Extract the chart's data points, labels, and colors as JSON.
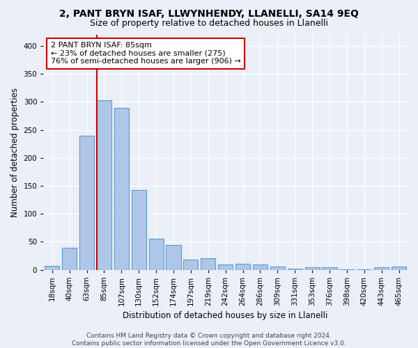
{
  "title1": "2, PANT BRYN ISAF, LLWYNHENDY, LLANELLI, SA14 9EQ",
  "title2": "Size of property relative to detached houses in Llanelli",
  "xlabel": "Distribution of detached houses by size in Llanelli",
  "ylabel": "Number of detached properties",
  "categories": [
    "18sqm",
    "40sqm",
    "63sqm",
    "85sqm",
    "107sqm",
    "130sqm",
    "152sqm",
    "174sqm",
    "197sqm",
    "219sqm",
    "242sqm",
    "264sqm",
    "286sqm",
    "309sqm",
    "331sqm",
    "353sqm",
    "376sqm",
    "398sqm",
    "420sqm",
    "443sqm",
    "465sqm"
  ],
  "values": [
    7,
    39,
    240,
    303,
    289,
    142,
    55,
    44,
    18,
    20,
    9,
    11,
    9,
    5,
    2,
    4,
    4,
    1,
    1,
    4,
    5
  ],
  "bar_color": "#aec6e8",
  "bar_edge_color": "#5b9bd5",
  "bar_edge_width": 0.8,
  "vline_index": 3,
  "vline_color": "#cc0000",
  "annotation_text": "2 PANT BRYN ISAF: 85sqm\n← 23% of detached houses are smaller (275)\n76% of semi-detached houses are larger (906) →",
  "annotation_box_color": "white",
  "annotation_box_edge_color": "#cc0000",
  "ylim": [
    0,
    420
  ],
  "yticks": [
    0,
    50,
    100,
    150,
    200,
    250,
    300,
    350,
    400
  ],
  "bg_color": "#eaeff8",
  "plot_bg_color": "#eaeff8",
  "footer": "Contains HM Land Registry data © Crown copyright and database right 2024.\nContains public sector information licensed under the Open Government Licence v3.0.",
  "title1_fontsize": 10,
  "title2_fontsize": 9,
  "xlabel_fontsize": 8.5,
  "ylabel_fontsize": 8.5,
  "tick_fontsize": 7.5,
  "annotation_fontsize": 8,
  "footer_fontsize": 6.5
}
